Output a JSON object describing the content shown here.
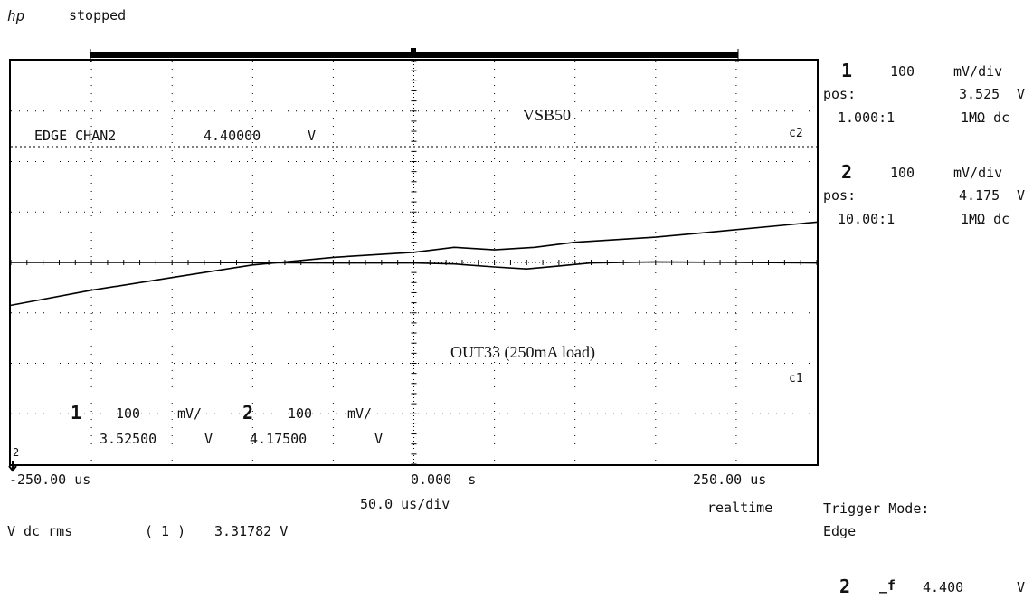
{
  "header": {
    "brand": "hp",
    "status": "stopped"
  },
  "channels": [
    {
      "number": "1",
      "scale": "100",
      "unit": "mV/div",
      "pos_label": "pos:",
      "pos_value": "3.525",
      "pos_unit": "V",
      "probe": "1.000:1",
      "coupling": "1MΩ dc"
    },
    {
      "number": "2",
      "scale": "100",
      "unit": "mV/div",
      "pos_label": "pos:",
      "pos_value": "4.175",
      "pos_unit": "V",
      "probe": "10.00:1",
      "coupling": "1MΩ dc"
    }
  ],
  "screen_overlay": {
    "trigger_text": "EDGE CHAN2",
    "trigger_value": "4.40000",
    "trigger_unit": "V",
    "c2_marker": "c2",
    "c1_marker": "c1",
    "bottom_ch1_num": "1",
    "bottom_ch1_scale": "100",
    "bottom_ch1_unit": "mV/",
    "bottom_ch1_value": "3.52500",
    "bottom_ch1_vunit": "V",
    "bottom_ch2_num": "2",
    "bottom_ch2_scale": "100",
    "bottom_ch2_unit": "mV/",
    "bottom_ch2_value": "4.17500",
    "bottom_ch2_vunit": "V",
    "ground_marker": "2"
  },
  "timebase": {
    "left": "-250.00 us",
    "center": "0.000  s",
    "right": "250.00 us",
    "per_div": "50.0 us/div",
    "mode": "realtime"
  },
  "measurement": {
    "label": "V dc rms",
    "channel": "( 1 )",
    "value": "3.31782 V"
  },
  "trigger": {
    "mode_label": "Trigger Mode:",
    "mode_value": "Edge",
    "channel": "2",
    "slope_symbol": "_f",
    "level": "4.400",
    "level_unit": "V"
  },
  "chart_data": {
    "type": "line",
    "x_unit": "us",
    "xlim": [
      -250,
      250
    ],
    "series": [
      {
        "name": "VSB50",
        "x": [
          -250,
          -200,
          -150,
          -100,
          -50,
          0,
          25,
          50,
          75,
          100,
          150,
          200,
          250
        ],
        "y": [
          4.09,
          4.12,
          4.145,
          4.17,
          4.185,
          4.195,
          4.205,
          4.2,
          4.205,
          4.215,
          4.225,
          4.24,
          4.255
        ]
      },
      {
        "name": "OUT33 (250mA load)",
        "x": [
          -250,
          -150,
          -50,
          0,
          25,
          50,
          70,
          90,
          110,
          150,
          200,
          250
        ],
        "y": [
          3.525,
          3.525,
          3.524,
          3.524,
          3.522,
          3.516,
          3.512,
          3.518,
          3.524,
          3.526,
          3.525,
          3.524
        ]
      }
    ]
  }
}
